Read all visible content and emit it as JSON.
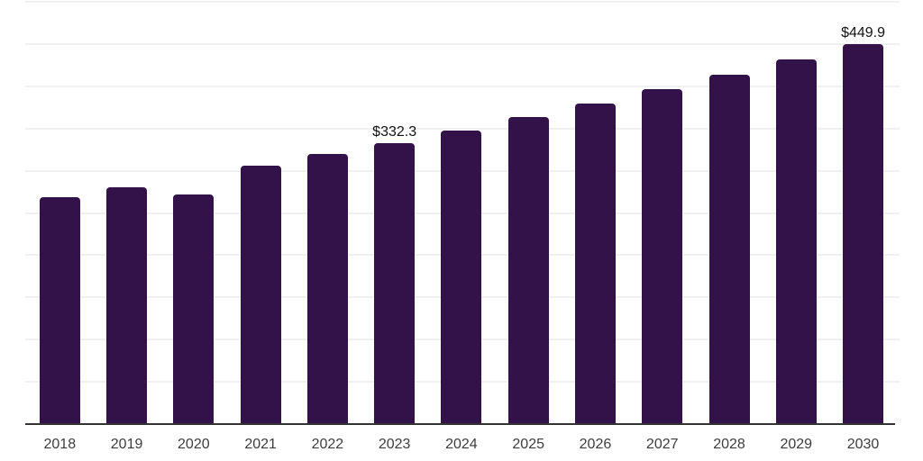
{
  "chart_data": {
    "type": "bar",
    "title": "",
    "xlabel": "",
    "ylabel": "",
    "categories": [
      "2018",
      "2019",
      "2020",
      "2021",
      "2022",
      "2023",
      "2024",
      "2025",
      "2026",
      "2027",
      "2028",
      "2029",
      "2030"
    ],
    "values": [
      268.9,
      280.6,
      271.8,
      306.5,
      319.5,
      332.3,
      347.2,
      363.2,
      379.3,
      396.1,
      413.7,
      431.5,
      449.9
    ],
    "data_labels": {
      "2023": "$332.3",
      "2030": "$449.9"
    },
    "ylim": [
      0,
      500
    ],
    "grid_step": 50,
    "grid": "horizontal",
    "y_axis_labels_visible": false,
    "legend_position": "none"
  },
  "colors": {
    "background": "#ffffff",
    "bar": "#33124a",
    "grid": "#f0f0f0",
    "axis": "#333333",
    "tick_label": "#3d3d3d",
    "data_label": "#111111"
  }
}
